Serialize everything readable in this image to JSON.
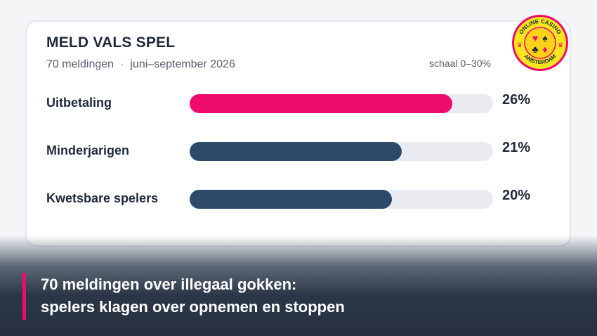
{
  "card": {
    "title": "MELD VALS SPEL",
    "count_text": "70 meldingen",
    "separator": "·",
    "period": "juni–september 2026",
    "scale_note": "schaal 0–30%"
  },
  "logo": {
    "text_top": "ONLINE CASINO",
    "text_bottom": "AMSTERDAM",
    "colors": {
      "ring": "#f7e51d",
      "border": "#ef0b6e",
      "center": "#ffd21a"
    }
  },
  "chart_data": {
    "type": "bar",
    "orientation": "horizontal",
    "categories": [
      "Uitbetaling",
      "Minderjarigen",
      "Kwetsbare spelers"
    ],
    "values": [
      26,
      21,
      20
    ],
    "value_labels": [
      "26%",
      "21%",
      "20%"
    ],
    "unit": "%",
    "xlim": [
      0,
      30
    ],
    "colors": [
      "#ef0b6e",
      "#2e4a6b",
      "#2e4a6b"
    ],
    "track_color": "#e9ebf1"
  },
  "footer": {
    "line1": "70 meldingen over illegaal gokken:",
    "line2": "spelers klagen over opnemen en stoppen",
    "accent": "#ef0b6e"
  }
}
